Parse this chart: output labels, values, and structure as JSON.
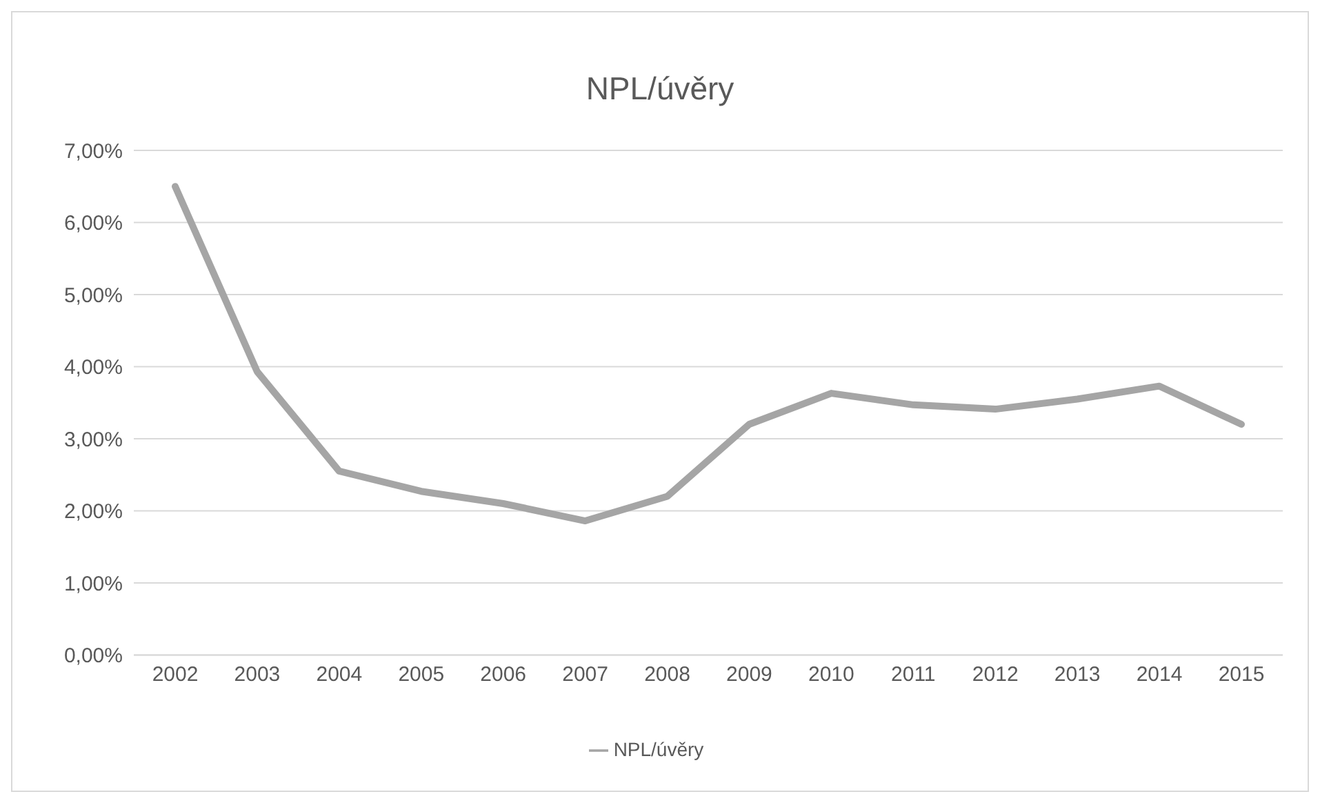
{
  "chart_data": {
    "type": "line",
    "title": "NPL/úvěry",
    "categories": [
      "2002",
      "2003",
      "2004",
      "2005",
      "2006",
      "2007",
      "2008",
      "2009",
      "2010",
      "2011",
      "2012",
      "2013",
      "2014",
      "2015"
    ],
    "series": [
      {
        "name": "NPL/úvěry",
        "color": "#a5a5a5",
        "values": [
          6.5,
          3.93,
          2.55,
          2.27,
          2.1,
          1.86,
          2.2,
          3.2,
          3.63,
          3.47,
          3.41,
          3.55,
          3.73,
          3.2
        ]
      }
    ],
    "ylim": [
      0,
      7
    ],
    "yticks": [
      {
        "value": 0,
        "label": "0,00%"
      },
      {
        "value": 1,
        "label": "1,00%"
      },
      {
        "value": 2,
        "label": "2,00%"
      },
      {
        "value": 3,
        "label": "3,00%"
      },
      {
        "value": 4,
        "label": "4,00%"
      },
      {
        "value": 5,
        "label": "5,00%"
      },
      {
        "value": 6,
        "label": "6,00%"
      },
      {
        "value": 7,
        "label": "7,00%"
      }
    ],
    "grid": "y",
    "legend": "bottom",
    "marker": "none",
    "line_style": "solid"
  }
}
